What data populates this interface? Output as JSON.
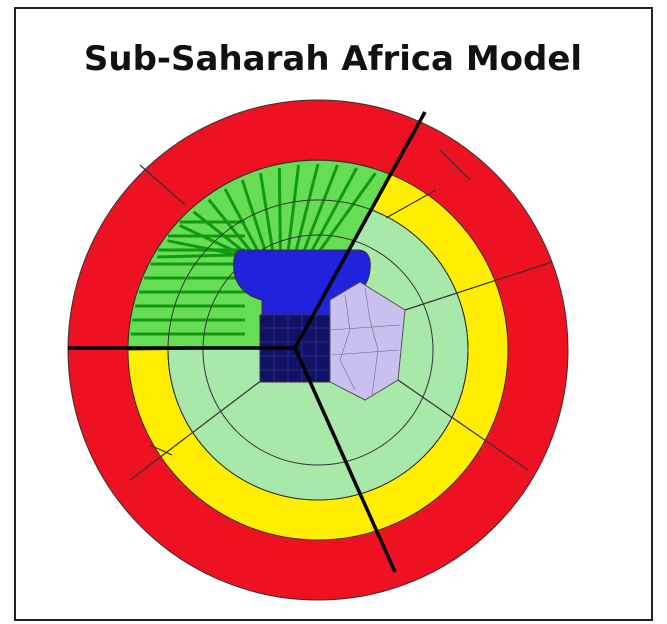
{
  "title": "Sub-Saharah Africa Model"
}
